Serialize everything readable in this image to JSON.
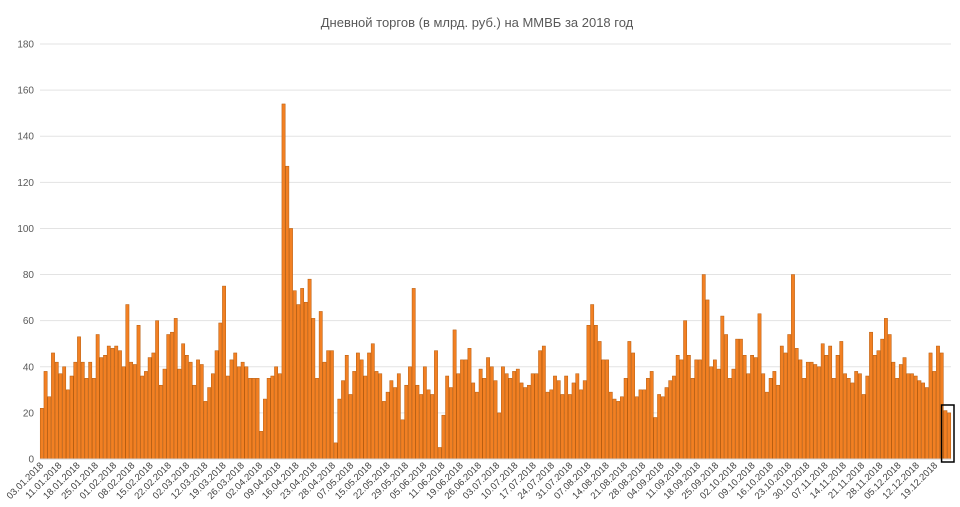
{
  "chart_data": {
    "type": "bar",
    "title": "Дневной  торгов (в млрд. руб.) на ММВБ за 2018 год",
    "xlabel": "",
    "ylabel": "",
    "ylim": [
      0,
      180
    ],
    "yticks": [
      0,
      20,
      40,
      60,
      80,
      100,
      120,
      140,
      160,
      180
    ],
    "grid": true,
    "legend": "none",
    "bar_color": "#f28023",
    "bar_edge_color": "#b45a0c",
    "highlight_box_color": "#000000",
    "x_tick_labels": [
      "03.01.2018",
      "11.01.2018",
      "18.01.2018",
      "25.01.2018",
      "01.02.2018",
      "08.02.2018",
      "15.02.2018",
      "22.02.2018",
      "02.03.2018",
      "12.03.2018",
      "19.03.2018",
      "26.03.2018",
      "02.04.2018",
      "09.04.2018",
      "16.04.2018",
      "23.04.2018",
      "28.04.2018",
      "07.05.2018",
      "15.05.2018",
      "22.05.2018",
      "29.05.2018",
      "05.06.2018",
      "11.06.2018",
      "19.06.2018",
      "26.06.2018",
      "03.07.2018",
      "10.07.2018",
      "17.07.2018",
      "24.07.2018",
      "31.07.2018",
      "07.08.2018",
      "14.08.2018",
      "21.08.2018",
      "28.08.2018",
      "04.09.2018",
      "11.09.2018",
      "18.09.2018",
      "25.09.2018",
      "02.10.2018",
      "09.10.2018",
      "16.10.2018",
      "23.10.2018",
      "30.10.2018",
      "07.11.2018",
      "14.11.2018",
      "21.11.2018",
      "28.11.2018",
      "05.12.2018",
      "12.12.2018",
      "19.12.2018"
    ],
    "values": [
      22,
      38,
      27,
      46,
      42,
      37,
      40,
      30,
      36,
      42,
      53,
      42,
      35,
      42,
      35,
      54,
      44,
      45,
      49,
      48,
      49,
      47,
      40,
      67,
      42,
      41,
      58,
      36,
      38,
      44,
      46,
      60,
      32,
      39,
      54,
      55,
      61,
      39,
      50,
      45,
      42,
      32,
      43,
      41,
      25,
      31,
      37,
      47,
      59,
      75,
      36,
      43,
      46,
      40,
      42,
      40,
      35,
      35,
      35,
      12,
      26,
      35,
      36,
      40,
      37,
      154,
      127,
      100,
      73,
      67,
      74,
      68,
      78,
      61,
      35,
      64,
      42,
      47,
      47,
      7,
      26,
      34,
      45,
      28,
      38,
      46,
      43,
      36,
      46,
      50,
      38,
      37,
      25,
      29,
      34,
      31,
      37,
      17,
      32,
      40,
      74,
      32,
      28,
      40,
      30,
      28,
      47,
      5,
      19,
      36,
      31,
      56,
      37,
      43,
      43,
      48,
      33,
      29,
      39,
      35,
      44,
      40,
      34,
      20,
      40,
      37,
      35,
      38,
      39,
      33,
      31,
      32,
      37,
      37,
      47,
      49,
      29,
      30,
      36,
      34,
      28,
      36,
      28,
      33,
      37,
      30,
      34,
      58,
      67,
      58,
      51,
      43,
      43,
      29,
      26,
      25,
      27,
      35,
      51,
      46,
      27,
      30,
      30,
      35,
      38,
      18,
      28,
      27,
      31,
      34,
      36,
      45,
      43,
      60,
      45,
      35,
      43,
      43,
      80,
      69,
      40,
      43,
      39,
      62,
      54,
      35,
      39,
      52,
      52,
      45,
      37,
      45,
      44,
      63,
      37,
      29,
      35,
      38,
      32,
      49,
      46,
      54,
      80,
      48,
      43,
      35,
      42,
      42,
      41,
      40,
      50,
      45,
      49,
      35,
      45,
      51,
      37,
      35,
      33,
      38,
      37,
      28,
      36,
      55,
      45,
      47,
      52,
      61,
      54,
      42,
      35,
      41,
      44,
      37,
      37,
      36,
      34,
      33,
      31,
      46,
      38,
      49,
      46,
      21,
      20
    ]
  }
}
